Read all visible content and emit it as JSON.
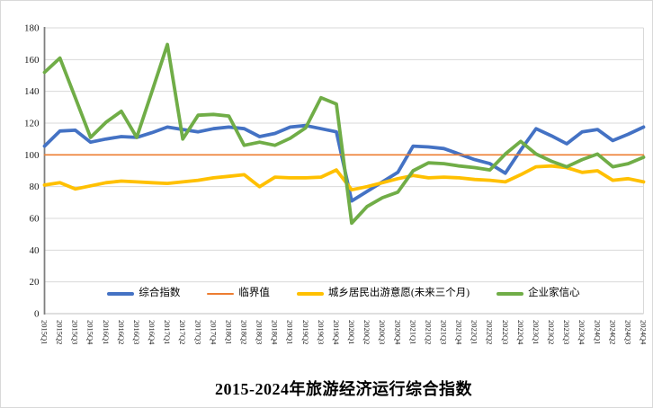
{
  "chart_data": {
    "type": "line",
    "title": "2015-2024年旅游经济运行综合指数",
    "xlabel": "",
    "ylabel": "",
    "ylim": [
      0,
      180
    ],
    "ytick_step": 20,
    "grid": true,
    "legend_position": "bottom-inside",
    "categories": [
      "2015Q1",
      "2015Q2",
      "2015Q3",
      "2015Q4",
      "2016Q1",
      "2016Q2",
      "2016Q3",
      "2016Q4",
      "2017Q1",
      "2017Q2",
      "2017Q3",
      "2017Q4",
      "2018Q1",
      "2018Q2",
      "2018Q3",
      "2018Q4",
      "2019Q1",
      "2019Q2",
      "2019Q3",
      "2019Q4",
      "2020Q1",
      "2020Q2",
      "2020Q3",
      "2020Q4",
      "2021Q1",
      "2021Q2",
      "2021Q3",
      "2021Q4",
      "2022Q1",
      "2022Q2",
      "2022Q3",
      "2022Q4",
      "2023Q1",
      "2023Q2",
      "2023Q3",
      "2023Q4",
      "2024Q1",
      "2024Q2",
      "2024Q3",
      "2024Q4"
    ],
    "series": [
      {
        "key": "composite-index",
        "name": "综合指数",
        "color": "#4472C4",
        "line_width": 3.8,
        "values": [
          105.5,
          115,
          115.5,
          108,
          110,
          111.5,
          111,
          114,
          117.5,
          116,
          114.5,
          116.5,
          117.5,
          116.5,
          111.5,
          113.5,
          117.5,
          118.5,
          116.5,
          114.5,
          71,
          77,
          83,
          89,
          105.5,
          105,
          104,
          100.5,
          97,
          94.5,
          88.5,
          103,
          116.5,
          112,
          107,
          114.5,
          116,
          109,
          113,
          117.5
        ]
      },
      {
        "key": "critical-value",
        "name": "临界值",
        "color": "#ED7D31",
        "line_width": 1.6,
        "values": [
          100,
          100,
          100,
          100,
          100,
          100,
          100,
          100,
          100,
          100,
          100,
          100,
          100,
          100,
          100,
          100,
          100,
          100,
          100,
          100,
          100,
          100,
          100,
          100,
          100,
          100,
          100,
          100,
          100,
          100,
          100,
          100,
          100,
          100,
          100,
          100,
          100,
          100,
          100,
          100
        ]
      },
      {
        "key": "travel-intention",
        "name": "城乡居民出游意愿(未来三个月)",
        "color": "#FFC000",
        "line_width": 3.8,
        "values": [
          81,
          82.5,
          78.5,
          80.5,
          82.5,
          83.5,
          83,
          82.5,
          82,
          83,
          84,
          85.5,
          86.5,
          87.5,
          80,
          86,
          85.5,
          85.5,
          86,
          90.5,
          78,
          80,
          82.5,
          85,
          87,
          85.5,
          86,
          85.5,
          84.5,
          84,
          83,
          87.5,
          92.5,
          93,
          92,
          89,
          90,
          84,
          85,
          83
        ]
      },
      {
        "key": "entrepreneur-confidence",
        "name": "企业家信心",
        "color": "#70AD47",
        "line_width": 3.8,
        "values": [
          152,
          161,
          136,
          111,
          120.5,
          127.5,
          111,
          140,
          169.5,
          110,
          125,
          125.5,
          124.5,
          106,
          108,
          106,
          110.5,
          117,
          136,
          132,
          57,
          67.5,
          73,
          76.5,
          90,
          95,
          94.5,
          93,
          92,
          90.5,
          100.5,
          108.5,
          100.5,
          96,
          92.5,
          97,
          100.5,
          92.5,
          94.5,
          98.5
        ]
      }
    ],
    "colors": {
      "gridline": "#D9D9D9",
      "axis_line": "#7F7F7F",
      "bottom_axis": "#BFBFBF",
      "tick_text": "#1a1a1a"
    }
  }
}
